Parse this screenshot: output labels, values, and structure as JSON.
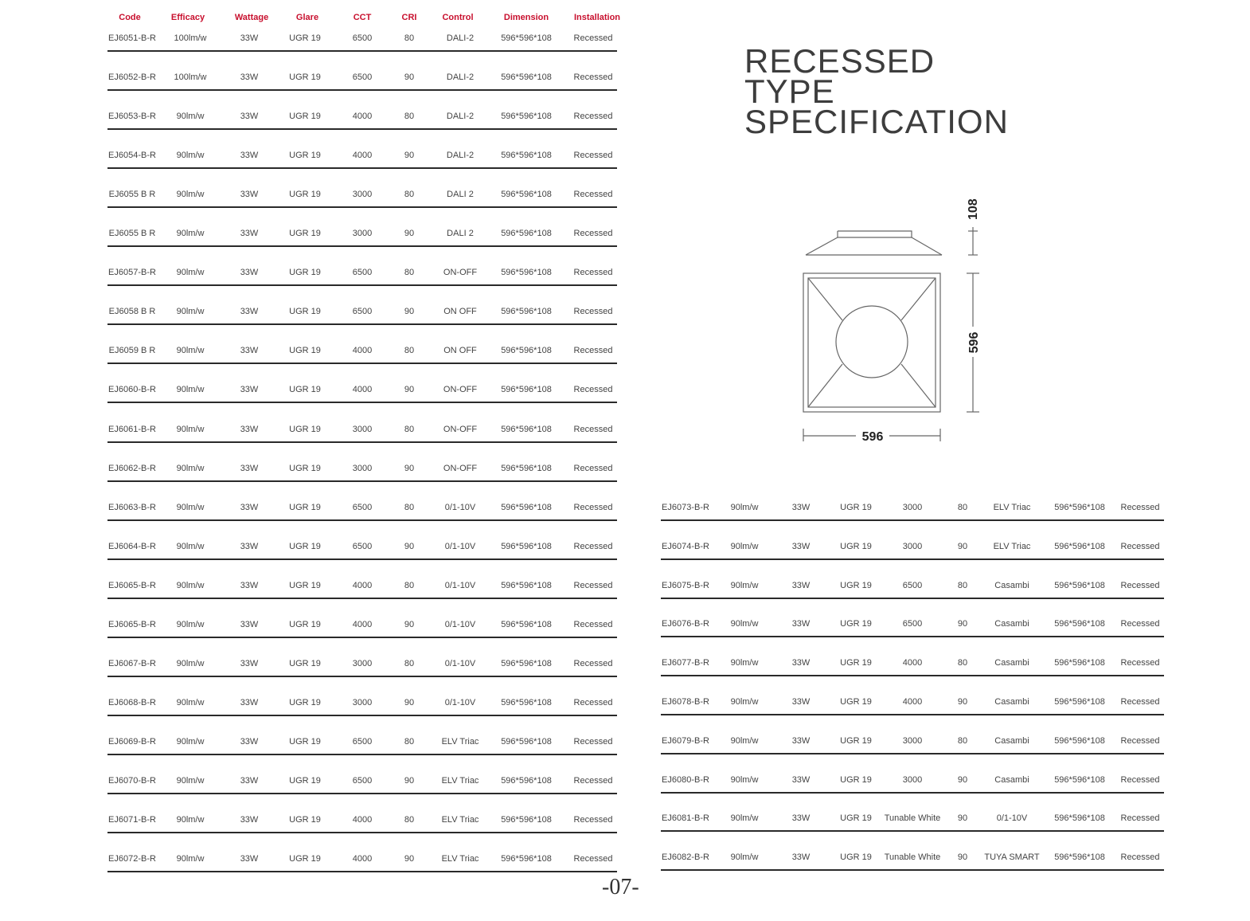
{
  "header": {
    "columns": [
      "Code",
      "Efficacy",
      "Wattage",
      "Glare",
      "CCT",
      "CRI",
      "Control",
      "Dimension",
      "Installation"
    ]
  },
  "title": {
    "line1": "RECESSED",
    "line2": "TYPE",
    "line3": "SPECIFICATION"
  },
  "diagram": {
    "height_label": "108",
    "width_label": "596",
    "depth_label": "596"
  },
  "left_table": [
    [
      "EJ6051-B-R",
      "100lm/w",
      "33W",
      "UGR 19",
      "6500",
      "80",
      "DALI-2",
      "596*596*108",
      "Recessed"
    ],
    [
      "EJ6052-B-R",
      "100lm/w",
      "33W",
      "UGR 19",
      "6500",
      "90",
      "DALI-2",
      "596*596*108",
      "Recessed"
    ],
    [
      "EJ6053-B-R",
      "90lm/w",
      "33W",
      "UGR 19",
      "4000",
      "80",
      "DALI-2",
      "596*596*108",
      "Recessed"
    ],
    [
      "EJ6054-B-R",
      "90lm/w",
      "33W",
      "UGR 19",
      "4000",
      "90",
      "DALI-2",
      "596*596*108",
      "Recessed"
    ],
    [
      "EJ6055 B R",
      "90lm/w",
      "33W",
      "UGR 19",
      "3000",
      "80",
      "DALI 2",
      "596*596*108",
      "Recessed"
    ],
    [
      "EJ6055 B R",
      "90lm/w",
      "33W",
      "UGR 19",
      "3000",
      "90",
      "DALI 2",
      "596*596*108",
      "Recessed"
    ],
    [
      "EJ6057-B-R",
      "90lm/w",
      "33W",
      "UGR 19",
      "6500",
      "80",
      "ON-OFF",
      "596*596*108",
      "Recessed"
    ],
    [
      "EJ6058 B R",
      "90lm/w",
      "33W",
      "UGR 19",
      "6500",
      "90",
      "ON OFF",
      "596*596*108",
      "Recessed"
    ],
    [
      "EJ6059 B R",
      "90lm/w",
      "33W",
      "UGR 19",
      "4000",
      "80",
      "ON OFF",
      "596*596*108",
      "Recessed"
    ],
    [
      "EJ6060-B-R",
      "90lm/w",
      "33W",
      "UGR 19",
      "4000",
      "90",
      "ON-OFF",
      "596*596*108",
      "Recessed"
    ],
    [
      "EJ6061-B-R",
      "90lm/w",
      "33W",
      "UGR 19",
      "3000",
      "80",
      "ON-OFF",
      "596*596*108",
      "Recessed"
    ],
    [
      "EJ6062-B-R",
      "90lm/w",
      "33W",
      "UGR 19",
      "3000",
      "90",
      "ON-OFF",
      "596*596*108",
      "Recessed"
    ],
    [
      "EJ6063-B-R",
      "90lm/w",
      "33W",
      "UGR 19",
      "6500",
      "80",
      "0/1-10V",
      "596*596*108",
      "Recessed"
    ],
    [
      "EJ6064-B-R",
      "90lm/w",
      "33W",
      "UGR 19",
      "6500",
      "90",
      "0/1-10V",
      "596*596*108",
      "Recessed"
    ],
    [
      "EJ6065-B-R",
      "90lm/w",
      "33W",
      "UGR 19",
      "4000",
      "80",
      "0/1-10V",
      "596*596*108",
      "Recessed"
    ],
    [
      "EJ6065-B-R",
      "90lm/w",
      "33W",
      "UGR 19",
      "4000",
      "90",
      "0/1-10V",
      "596*596*108",
      "Recessed"
    ],
    [
      "EJ6067-B-R",
      "90lm/w",
      "33W",
      "UGR 19",
      "3000",
      "80",
      "0/1-10V",
      "596*596*108",
      "Recessed"
    ],
    [
      "EJ6068-B-R",
      "90lm/w",
      "33W",
      "UGR 19",
      "3000",
      "90",
      "0/1-10V",
      "596*596*108",
      "Recessed"
    ],
    [
      "EJ6069-B-R",
      "90lm/w",
      "33W",
      "UGR 19",
      "6500",
      "80",
      "ELV Triac",
      "596*596*108",
      "Recessed"
    ],
    [
      "EJ6070-B-R",
      "90lm/w",
      "33W",
      "UGR 19",
      "6500",
      "90",
      "ELV Triac",
      "596*596*108",
      "Recessed"
    ],
    [
      "EJ6071-B-R",
      "90lm/w",
      "33W",
      "UGR 19",
      "4000",
      "80",
      "ELV Triac",
      "596*596*108",
      "Recessed"
    ],
    [
      "EJ6072-B-R",
      "90lm/w",
      "33W",
      "UGR 19",
      "4000",
      "90",
      "ELV Triac",
      "596*596*108",
      "Recessed"
    ]
  ],
  "right_table": [
    [
      "EJ6073-B-R",
      "90lm/w",
      "33W",
      "UGR 19",
      "3000",
      "80",
      "ELV Triac",
      "596*596*108",
      "Recessed"
    ],
    [
      "EJ6074-B-R",
      "90lm/w",
      "33W",
      "UGR 19",
      "3000",
      "90",
      "ELV Triac",
      "596*596*108",
      "Recessed"
    ],
    [
      "EJ6075-B-R",
      "90lm/w",
      "33W",
      "UGR 19",
      "6500",
      "80",
      "Casambi",
      "596*596*108",
      "Recessed"
    ],
    [
      "EJ6076-B-R",
      "90lm/w",
      "33W",
      "UGR 19",
      "6500",
      "90",
      "Casambi",
      "596*596*108",
      "Recessed"
    ],
    [
      "EJ6077-B-R",
      "90lm/w",
      "33W",
      "UGR 19",
      "4000",
      "80",
      "Casambi",
      "596*596*108",
      "Recessed"
    ],
    [
      "EJ6078-B-R",
      "90lm/w",
      "33W",
      "UGR 19",
      "4000",
      "90",
      "Casambi",
      "596*596*108",
      "Recessed"
    ],
    [
      "EJ6079-B-R",
      "90lm/w",
      "33W",
      "UGR 19",
      "3000",
      "80",
      "Casambi",
      "596*596*108",
      "Recessed"
    ],
    [
      "EJ6080-B-R",
      "90lm/w",
      "33W",
      "UGR 19",
      "3000",
      "90",
      "Casambi",
      "596*596*108",
      "Recessed"
    ],
    [
      "EJ6081-B-R",
      "90lm/w",
      "33W",
      "UGR 19",
      "Tunable White",
      "90",
      "0/1-10V",
      "596*596*108",
      "Recessed"
    ],
    [
      "EJ6082-B-R",
      "90lm/w",
      "33W",
      "UGR 19",
      "Tunable White",
      "90",
      "TUYA SMART",
      "596*596*108",
      "Recessed"
    ]
  ],
  "page_number": "-07-",
  "colors": {
    "header_red": "#c8102e",
    "text": "#444444",
    "rule": "#2a2a2a"
  }
}
